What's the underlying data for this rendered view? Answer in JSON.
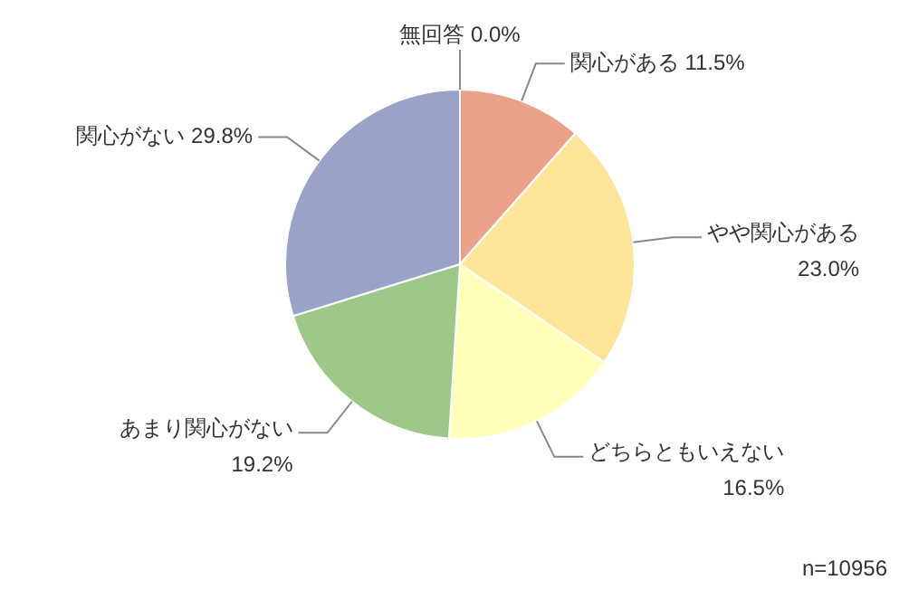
{
  "chart_data": {
    "type": "pie",
    "categories": [
      "関心がある",
      "やや関心がある",
      "どちらともいえない",
      "あまり関心がない",
      "関心がない",
      "無回答"
    ],
    "values": [
      11.5,
      23.0,
      16.5,
      19.2,
      29.8,
      0.0
    ],
    "value_labels": [
      "11.5%",
      "23.0%",
      "16.5%",
      "19.2%",
      "29.8%",
      "0.0%"
    ],
    "colors": [
      "#eca18a",
      "#fde69a",
      "#ffffbb",
      "#9ec88a",
      "#9aa2c8",
      "#b0b0b0"
    ],
    "legend": false,
    "annotations": [
      "n=10956"
    ]
  }
}
